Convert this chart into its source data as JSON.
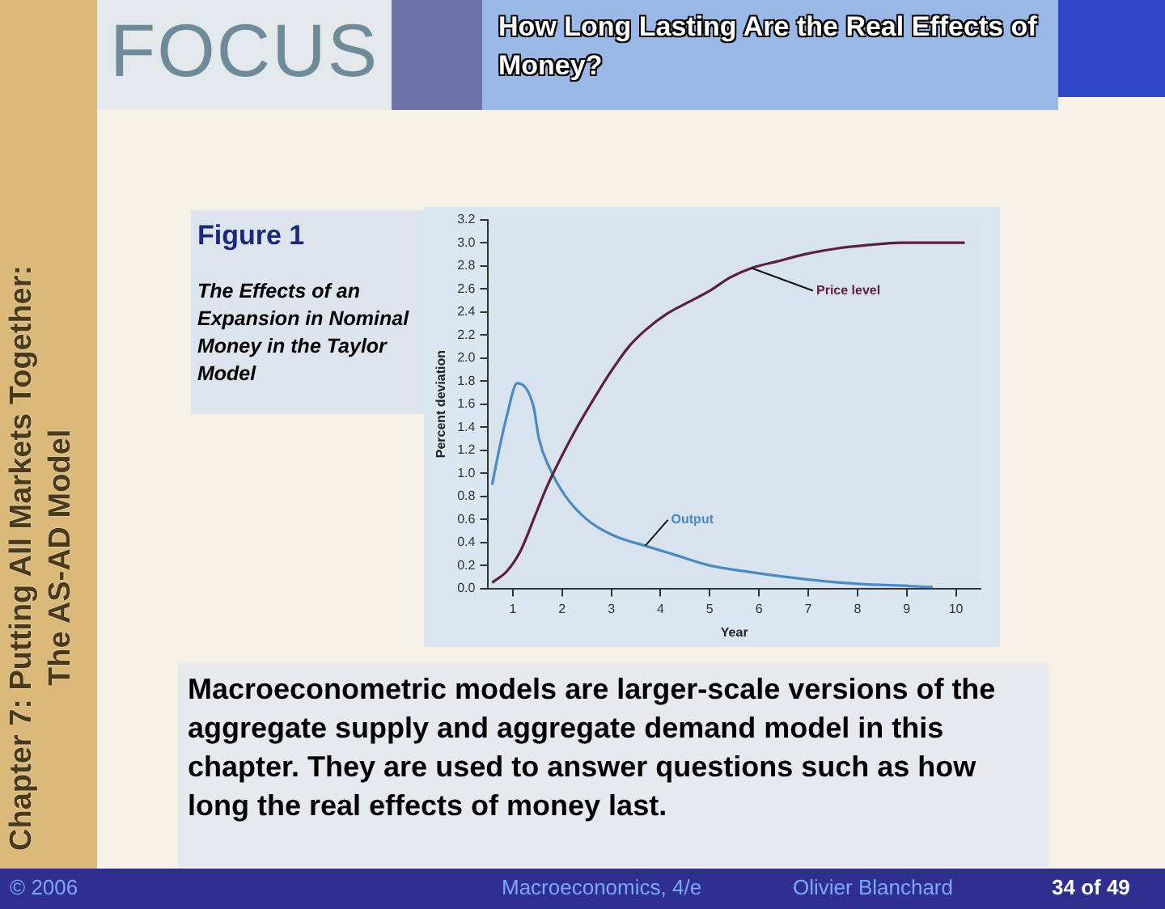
{
  "chart_data": {
    "type": "line",
    "title": "How Long Lasting Are the Real Effects of Money?",
    "subtitle": "The Effects of an Expansion in Nominal Money in the Taylor Model",
    "xlabel": "Year",
    "ylabel": "Percent deviation",
    "xlim": [
      0.5,
      10.5
    ],
    "xticks": [
      1,
      2,
      3,
      4,
      5,
      6,
      7,
      8,
      9,
      10
    ],
    "ylim": [
      0,
      3.2
    ],
    "yticks": [
      {
        "value": 0,
        "label": "0.0"
      },
      0.2,
      0.4,
      0.6,
      0.8,
      {
        "value": 1,
        "label": "1.0"
      },
      1.2,
      1.4,
      1.6,
      1.8,
      {
        "value": 2,
        "label": "2.0"
      },
      2.2,
      2.4,
      2.6,
      2.8,
      {
        "value": 3,
        "label": "3.0"
      },
      3.2
    ],
    "legend": false,
    "marker": "none",
    "line_style": "solid",
    "series": [
      {
        "name": "Price level",
        "color": "#5b1f3f",
        "x": [
          0.58,
          0.88,
          1.15,
          1.47,
          1.68,
          1.96,
          2.28,
          2.61,
          2.99,
          3.36,
          3.69,
          4.12,
          4.55,
          4.99,
          5.42,
          5.85,
          6.39,
          6.93,
          7.58,
          8.23,
          8.88,
          10.18
        ],
        "values": [
          0.05,
          0.15,
          0.32,
          0.65,
          0.87,
          1.12,
          1.38,
          1.62,
          1.88,
          2.1,
          2.24,
          2.38,
          2.48,
          2.58,
          2.7,
          2.78,
          2.84,
          2.9,
          2.95,
          2.98,
          3.0,
          3.0
        ]
      },
      {
        "name": "Output",
        "color": "#4a8ac4",
        "x": [
          0.58,
          0.72,
          0.88,
          1.09,
          1.42,
          1.53,
          1.74,
          2.07,
          2.5,
          3.04,
          3.69,
          4.23,
          4.99,
          5.85,
          6.93,
          8.01,
          9.09,
          9.53
        ],
        "values": [
          0.9,
          1.2,
          1.5,
          1.78,
          1.58,
          1.3,
          1.05,
          0.8,
          0.6,
          0.46,
          0.37,
          0.3,
          0.2,
          0.14,
          0.08,
          0.04,
          0.02,
          0.01
        ]
      }
    ],
    "annotations": [
      "FOCUS",
      "Figure 1",
      "Chapter 7: Putting All Markets Together: The AS-AD Model",
      "Macroeconometric models are larger-scale versions of the aggregate supply and aggregate demand model in this chapter.  They are used to answer questions such as how long the real effects of money last.",
      "© 2006",
      "Macroeconomics, 4/e",
      "Olivier Blanchard",
      "34 of 49"
    ]
  }
}
